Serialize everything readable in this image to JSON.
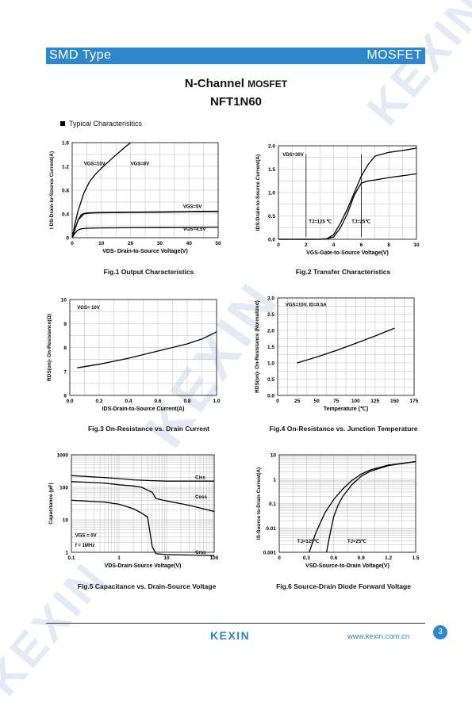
{
  "header": {
    "left": "SMD Type",
    "right": "MOSFET"
  },
  "title": {
    "line1": "N-Channel",
    "line1_suffix": "MOSFET",
    "line2": "NFT1N60"
  },
  "section": "Typical  Characterisitics",
  "watermark": "KEXIN",
  "footer": {
    "logo": "KEXIN",
    "url": "www.kexin.com.cn",
    "page": "3"
  },
  "colors": {
    "accent": "#2f86c8"
  },
  "figures": {
    "fig1": {
      "caption": "Fig.1 Output Characteristics",
      "xlabel": "VDS- Drain-to-Source Voltage(V)",
      "ylabel": "I DS-Drain-to-Source Current(A)",
      "xticks": [
        "0",
        "10",
        "20",
        "30",
        "40",
        "50"
      ],
      "yticks": [
        "0",
        "0.4",
        "0.8",
        "1.2",
        "1.6"
      ],
      "annotations": [
        "VGS=10V",
        "VGS=8V",
        "VGS=5V",
        "VGS=4.5V"
      ]
    },
    "fig2": {
      "caption": "Fig.2 Transfer Characteristics",
      "xlabel": "VGS-Gate-to-Source Voltage(V)",
      "ylabel": "IDS-Drain-to-Source Current(A)",
      "xticks": [
        "0",
        "2",
        "4",
        "6",
        "8",
        "10"
      ],
      "yticks": [
        "0.0",
        "0.5",
        "1.0",
        "1.5",
        "2.0"
      ],
      "annotations": [
        "VDS=30V",
        "TJ=125 ℃",
        "TJ=25℃"
      ]
    },
    "fig3": {
      "caption": "Fig.3 On-Resistance vs. Drain Current",
      "xlabel": "IDS-Drain-to-Source  Current(A)",
      "ylabel": "RDS(on)- On-Resistance(Ω)",
      "xticks": [
        "0.0",
        "0.2",
        "0.4",
        "0.6",
        "0.8",
        "1.0"
      ],
      "yticks": [
        "6",
        "7",
        "8",
        "9",
        "10"
      ],
      "annotations": [
        "VGS= 10V"
      ]
    },
    "fig4": {
      "caption": "Fig.4 On-Resistance vs. Junction Temperature",
      "xlabel": "Temperature (℃)",
      "ylabel": "RDS(on)- On-Resistance (Normalized)",
      "xticks": [
        "0",
        "25",
        "50",
        "75",
        "100",
        "125",
        "150",
        "175"
      ],
      "yticks": [
        "0.0",
        "0.5",
        "1.0",
        "1.5",
        "2.0",
        "2.5",
        "3.0"
      ],
      "annotations": [
        "VGS=10V, ID=0.5A"
      ]
    },
    "fig5": {
      "caption": "Fig.5 Capacitance vs. Drain-Source Voltage",
      "xlabel": "VDS-Drain-Source Voltage(V)",
      "ylabel": "Capacitance (pF)",
      "xticks": [
        "0.1",
        "1",
        "10",
        "100"
      ],
      "yticks": [
        "1",
        "10",
        "100",
        "1000"
      ],
      "annotations": [
        "Ciss",
        "Coss",
        "Crss",
        "VGS = 0V",
        "f = 1MHz"
      ]
    },
    "fig6": {
      "caption": "Fig.6 Source-Drain Diode Forward Voltage",
      "xlabel": "VSD-Source-to-Drain Voltage(V)",
      "ylabel": "IS-Source to-Drain Current(A)",
      "xticks": [
        "0",
        "0.3",
        "0.6",
        "0.9",
        "1.2",
        "1.5"
      ],
      "yticks": [
        "0.001",
        "0.01",
        "0.1",
        "1",
        "10"
      ],
      "annotations": [
        "TJ=125℃",
        "TJ=25℃"
      ]
    }
  },
  "chart_data": [
    {
      "type": "line",
      "title": "Fig.1 Output Characteristics",
      "xlabel": "VDS- Drain-to-Source Voltage(V)",
      "ylabel": "IDS-Drain-to-Source Current(A)",
      "xlim": [
        0,
        50
      ],
      "ylim": [
        0,
        1.6
      ],
      "grid": true,
      "series": [
        {
          "name": "VGS=10V",
          "x": [
            0,
            1,
            2,
            4,
            6,
            8,
            10,
            14,
            18,
            20
          ],
          "y": [
            0,
            0.25,
            0.45,
            0.75,
            0.95,
            1.07,
            1.17,
            1.35,
            1.52,
            1.6
          ]
        },
        {
          "name": "VGS=8V",
          "x": [
            0,
            1,
            2,
            3,
            4,
            6,
            10,
            20,
            30,
            40,
            50
          ],
          "y": [
            0,
            0.15,
            0.3,
            0.38,
            0.41,
            0.42,
            0.425,
            0.43,
            0.435,
            0.44,
            0.445
          ]
        },
        {
          "name": "VGS=5V",
          "x": [
            0,
            2,
            4,
            6,
            10,
            20,
            30,
            40,
            50
          ],
          "y": [
            0,
            0.3,
            0.4,
            0.415,
            0.42,
            0.425,
            0.43,
            0.435,
            0.44
          ]
        },
        {
          "name": "VGS=4.5V",
          "x": [
            0,
            1,
            2,
            3,
            5,
            10,
            20,
            30,
            40,
            50
          ],
          "y": [
            0,
            0.08,
            0.13,
            0.15,
            0.16,
            0.165,
            0.168,
            0.17,
            0.172,
            0.175
          ]
        }
      ]
    },
    {
      "type": "line",
      "title": "Fig.2 Transfer Characteristics",
      "xlabel": "VGS-Gate-to-Source Voltage(V)",
      "ylabel": "IDS-Drain-to-Source Current(A)",
      "xlim": [
        0,
        10
      ],
      "ylim": [
        0,
        2.0
      ],
      "grid": true,
      "series": [
        {
          "name": "TJ=125 ℃",
          "x": [
            0,
            2,
            3,
            3.5,
            4,
            4.5,
            5,
            5.5,
            6,
            6.5,
            7,
            8,
            9,
            10
          ],
          "y": [
            0,
            0,
            0,
            0.01,
            0.1,
            0.35,
            0.65,
            1.0,
            1.35,
            1.6,
            1.78,
            1.86,
            1.9,
            1.95
          ]
        },
        {
          "name": "TJ=25℃",
          "x": [
            0,
            3,
            3.5,
            4,
            4.5,
            5,
            5.5,
            6,
            6.5,
            7,
            8,
            9,
            10
          ],
          "y": [
            0,
            0,
            0.01,
            0.05,
            0.25,
            0.55,
            0.95,
            1.2,
            1.25,
            1.27,
            1.32,
            1.36,
            1.4
          ]
        }
      ]
    },
    {
      "type": "line",
      "title": "Fig.3 On-Resistance vs. Drain Current",
      "xlabel": "IDS-Drain-to-Source  Current(A)",
      "ylabel": "RDS(on)- On-Resistance(Ω)",
      "xlim": [
        0,
        1.0
      ],
      "ylim": [
        6,
        10
      ],
      "grid": true,
      "series": [
        {
          "name": "VGS= 10V",
          "x": [
            0.05,
            0.2,
            0.4,
            0.6,
            0.8,
            0.9,
            1.0
          ],
          "y": [
            7.15,
            7.3,
            7.55,
            7.85,
            8.15,
            8.35,
            8.65
          ]
        }
      ]
    },
    {
      "type": "line",
      "title": "Fig.4 On-Resistance vs. Junction Temperature",
      "xlabel": "Temperature (℃)",
      "ylabel": "RDS(on)- On-Resistance (Normalized)",
      "xlim": [
        0,
        175
      ],
      "ylim": [
        0,
        3.0
      ],
      "grid": true,
      "series": [
        {
          "name": "VGS=10V, ID=0.5A",
          "x": [
            25,
            50,
            75,
            100,
            125,
            150
          ],
          "y": [
            1.0,
            1.18,
            1.38,
            1.6,
            1.83,
            2.07
          ]
        }
      ]
    },
    {
      "type": "line",
      "title": "Fig.5 Capacitance vs. Drain-Source Voltage",
      "xlabel": "VDS-Drain-Source Voltage(V)",
      "ylabel": "Capacitance (pF)",
      "xlim": [
        0.1,
        100
      ],
      "ylim": [
        1,
        1000
      ],
      "xscale": "log",
      "yscale": "log",
      "grid": true,
      "series": [
        {
          "name": "Ciss",
          "x": [
            0.1,
            0.5,
            1,
            2,
            5,
            10,
            30,
            100
          ],
          "y": [
            230,
            200,
            185,
            170,
            160,
            155,
            155,
            155
          ]
        },
        {
          "name": "Coss",
          "x": [
            0.1,
            0.5,
            1,
            2,
            3,
            5,
            6,
            10,
            30,
            100
          ],
          "y": [
            150,
            135,
            120,
            110,
            100,
            70,
            45,
            38,
            28,
            18
          ]
        },
        {
          "name": "Crss",
          "x": [
            0.1,
            0.5,
            1,
            2,
            3,
            4,
            5,
            6,
            10,
            100
          ],
          "y": [
            40,
            35,
            30,
            22,
            16,
            12,
            1.5,
            0.9,
            0.85,
            0.8
          ]
        }
      ]
    },
    {
      "type": "line",
      "title": "Fig.6 Source-Drain Diode Forward Voltage",
      "xlabel": "VSD-Source-to-Drain Voltage(V)",
      "ylabel": "IS-Source to-Drain Current(A)",
      "xlim": [
        0,
        1.5
      ],
      "ylim": [
        0.001,
        10
      ],
      "yscale": "log",
      "grid": true,
      "series": [
        {
          "name": "TJ=125℃",
          "x": [
            0.33,
            0.4,
            0.5,
            0.6,
            0.7,
            0.8,
            0.9,
            1.0,
            1.2,
            1.5
          ],
          "y": [
            0.001,
            0.006,
            0.04,
            0.15,
            0.4,
            0.9,
            1.6,
            2.4,
            3.8,
            5.2
          ]
        },
        {
          "name": "TJ=25℃",
          "x": [
            0.52,
            0.56,
            0.6,
            0.65,
            0.7,
            0.8,
            0.9,
            1.0,
            1.2,
            1.5
          ],
          "y": [
            0.001,
            0.006,
            0.03,
            0.09,
            0.2,
            0.6,
            1.3,
            2.1,
            3.6,
            5.3
          ]
        }
      ]
    }
  ]
}
